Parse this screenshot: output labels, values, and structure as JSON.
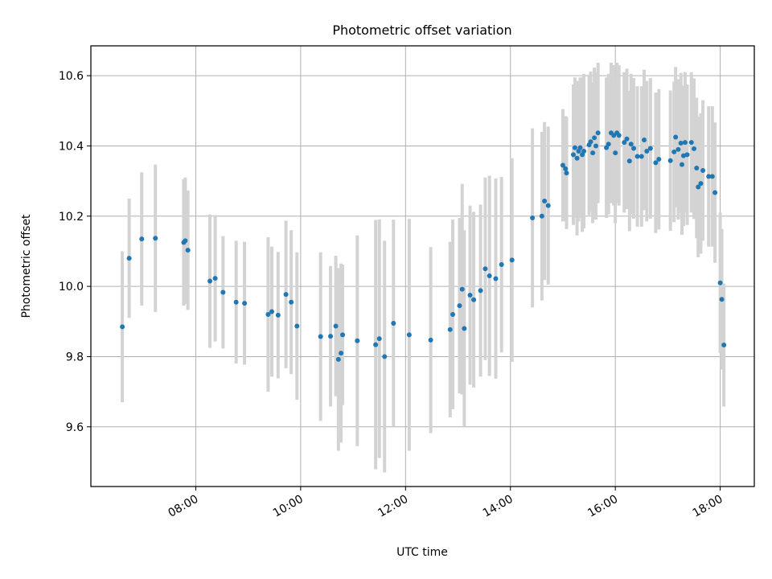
{
  "chart_data": {
    "type": "scatter",
    "title": "Photometric offset variation",
    "xlabel": "UTC time",
    "ylabel": "Photometric offset",
    "x_unit": "hours UTC",
    "xlim": [
      6.0,
      18.65
    ],
    "ylim": [
      9.43,
      10.685
    ],
    "x_ticks": [
      8,
      10,
      12,
      14,
      16,
      18
    ],
    "x_tick_labels": [
      "08:00",
      "10:00",
      "12:00",
      "14:00",
      "16:00",
      "18:00"
    ],
    "y_ticks": [
      9.6,
      9.8,
      10.0,
      10.2,
      10.4,
      10.6
    ],
    "y_tick_labels": [
      "9.6",
      "9.8",
      "10.0",
      "10.2",
      "10.4",
      "10.6"
    ],
    "grid": true,
    "point_color": "#1f77b4",
    "errorbar_color": "#d3d3d3",
    "points": [
      [
        6.6,
        9.885,
        0.215
      ],
      [
        6.73,
        10.08,
        0.17
      ],
      [
        6.97,
        10.135,
        0.19
      ],
      [
        7.23,
        10.137,
        0.21
      ],
      [
        7.77,
        10.125,
        0.18
      ],
      [
        7.8,
        10.13,
        0.18
      ],
      [
        7.85,
        10.103,
        0.17
      ],
      [
        8.27,
        10.015,
        0.19
      ],
      [
        8.37,
        10.023,
        0.18
      ],
      [
        8.52,
        9.983,
        0.16
      ],
      [
        8.77,
        9.955,
        0.175
      ],
      [
        8.93,
        9.952,
        0.175
      ],
      [
        9.38,
        9.92,
        0.22
      ],
      [
        9.45,
        9.928,
        0.185
      ],
      [
        9.57,
        9.918,
        0.18
      ],
      [
        9.72,
        9.977,
        0.21
      ],
      [
        9.82,
        9.955,
        0.205
      ],
      [
        9.93,
        9.887,
        0.21
      ],
      [
        10.38,
        9.857,
        0.24
      ],
      [
        10.57,
        9.858,
        0.2
      ],
      [
        10.67,
        9.887,
        0.2
      ],
      [
        10.72,
        9.792,
        0.26
      ],
      [
        10.77,
        9.81,
        0.255
      ],
      [
        10.8,
        9.862,
        0.2
      ],
      [
        11.08,
        9.845,
        0.3
      ],
      [
        11.43,
        9.834,
        0.355
      ],
      [
        11.5,
        9.851,
        0.34
      ],
      [
        11.6,
        9.8,
        0.33
      ],
      [
        11.77,
        9.895,
        0.295
      ],
      [
        12.07,
        9.862,
        0.33
      ],
      [
        12.48,
        9.847,
        0.265
      ],
      [
        12.85,
        9.877,
        0.25
      ],
      [
        12.9,
        9.92,
        0.27
      ],
      [
        13.03,
        9.945,
        0.25
      ],
      [
        13.08,
        9.992,
        0.3
      ],
      [
        13.12,
        9.88,
        0.28
      ],
      [
        13.23,
        9.975,
        0.255
      ],
      [
        13.3,
        9.962,
        0.25
      ],
      [
        13.43,
        9.988,
        0.245
      ],
      [
        13.52,
        10.05,
        0.26
      ],
      [
        13.6,
        10.03,
        0.285
      ],
      [
        13.72,
        10.022,
        0.285
      ],
      [
        13.83,
        10.062,
        0.25
      ],
      [
        14.03,
        10.075,
        0.29
      ],
      [
        14.42,
        10.195,
        0.255
      ],
      [
        14.6,
        10.2,
        0.24
      ],
      [
        14.65,
        10.243,
        0.225
      ],
      [
        14.72,
        10.23,
        0.225
      ],
      [
        15.0,
        10.345,
        0.16
      ],
      [
        15.05,
        10.335,
        0.15
      ],
      [
        15.07,
        10.323,
        0.16
      ],
      [
        15.2,
        10.375,
        0.2
      ],
      [
        15.23,
        10.395,
        0.2
      ],
      [
        15.27,
        10.365,
        0.22
      ],
      [
        15.3,
        10.385,
        0.2
      ],
      [
        15.33,
        10.395,
        0.2
      ],
      [
        15.37,
        10.375,
        0.22
      ],
      [
        15.4,
        10.385,
        0.22
      ],
      [
        15.5,
        10.403,
        0.2
      ],
      [
        15.53,
        10.412,
        0.2
      ],
      [
        15.57,
        10.38,
        0.2
      ],
      [
        15.6,
        10.423,
        0.2
      ],
      [
        15.63,
        10.4,
        0.21
      ],
      [
        15.67,
        10.437,
        0.2
      ],
      [
        15.83,
        10.395,
        0.2
      ],
      [
        15.87,
        10.405,
        0.2
      ],
      [
        15.92,
        10.437,
        0.2
      ],
      [
        15.97,
        10.43,
        0.2
      ],
      [
        16.0,
        10.38,
        0.2
      ],
      [
        16.03,
        10.437,
        0.2
      ],
      [
        16.07,
        10.43,
        0.2
      ],
      [
        16.17,
        10.41,
        0.2
      ],
      [
        16.22,
        10.42,
        0.2
      ],
      [
        16.27,
        10.357,
        0.2
      ],
      [
        16.3,
        10.405,
        0.2
      ],
      [
        16.35,
        10.393,
        0.2
      ],
      [
        16.42,
        10.37,
        0.2
      ],
      [
        16.5,
        10.37,
        0.2
      ],
      [
        16.55,
        10.417,
        0.2
      ],
      [
        16.6,
        10.385,
        0.2
      ],
      [
        16.67,
        10.393,
        0.2
      ],
      [
        16.77,
        10.352,
        0.2
      ],
      [
        16.83,
        10.362,
        0.2
      ],
      [
        17.05,
        10.358,
        0.2
      ],
      [
        17.12,
        10.383,
        0.2
      ],
      [
        17.15,
        10.425,
        0.2
      ],
      [
        17.2,
        10.39,
        0.2
      ],
      [
        17.25,
        10.408,
        0.2
      ],
      [
        17.27,
        10.347,
        0.2
      ],
      [
        17.3,
        10.372,
        0.2
      ],
      [
        17.33,
        10.41,
        0.2
      ],
      [
        17.37,
        10.375,
        0.2
      ],
      [
        17.45,
        10.41,
        0.2
      ],
      [
        17.5,
        10.392,
        0.2
      ],
      [
        17.55,
        10.337,
        0.2
      ],
      [
        17.58,
        10.283,
        0.2
      ],
      [
        17.63,
        10.293,
        0.2
      ],
      [
        17.67,
        10.33,
        0.2
      ],
      [
        17.78,
        10.313,
        0.2
      ],
      [
        17.85,
        10.313,
        0.2
      ],
      [
        17.9,
        10.267,
        0.2
      ],
      [
        18.0,
        10.01,
        0.2
      ],
      [
        18.03,
        9.963,
        0.2
      ],
      [
        18.07,
        9.833,
        0.175
      ]
    ]
  }
}
